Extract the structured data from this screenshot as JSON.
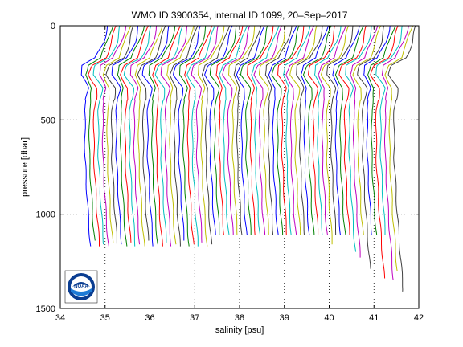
{
  "chart_data": {
    "type": "line",
    "title": "WMO ID 3900354, internal ID 1099, 20–Sep–2017",
    "xlabel": "salinity [psu]",
    "ylabel": "pressure [dbar]",
    "xlim": [
      34,
      42
    ],
    "ylim": [
      1500,
      0
    ],
    "y_reversed": true,
    "xticks": [
      "34",
      "35",
      "36",
      "37",
      "38",
      "39",
      "40",
      "41",
      "42"
    ],
    "yticks": [
      "0",
      "500",
      "1000",
      "1500"
    ],
    "grid": "dotted",
    "logo": "NOAA",
    "profile_offsets": [
      0,
      0.1,
      0.2,
      0.3,
      0.4,
      0.5,
      0.6,
      0.7,
      0.8,
      0.9,
      1.0,
      1.1,
      1.2,
      1.3,
      1.4,
      1.5,
      1.6,
      1.7,
      1.8,
      1.9,
      2.0,
      2.1,
      2.2,
      2.3,
      2.4,
      2.5,
      2.6,
      2.7,
      2.8,
      2.9,
      3.0,
      3.1,
      3.2,
      3.3,
      3.4,
      3.5,
      3.6,
      3.7,
      3.8,
      3.9,
      4.0,
      4.1,
      4.2,
      4.3,
      4.4,
      4.5,
      4.6,
      4.7,
      4.8,
      4.9,
      5.0,
      5.1,
      5.2,
      5.3,
      5.4,
      5.5,
      5.6,
      5.7,
      5.8,
      5.9,
      6.0,
      6.1,
      6.2,
      6.3,
      6.4,
      6.5,
      6.6,
      6.7,
      6.8,
      6.9
    ],
    "profile_depths": [
      1170,
      1140,
      1170,
      1160,
      1170,
      1150,
      1170,
      1160,
      1170,
      1150,
      1170,
      1160,
      1170,
      1140,
      1170,
      1160,
      1170,
      1150,
      1170,
      1160,
      1170,
      1140,
      1170,
      1160,
      1170,
      1150,
      1170,
      1160,
      1110,
      1110,
      1110,
      1110,
      1110,
      1110,
      1110,
      1110,
      1110,
      1110,
      1110,
      1110,
      1110,
      1110,
      1110,
      1110,
      1110,
      1110,
      1110,
      1110,
      1110,
      1110,
      1110,
      1110,
      1110,
      1110,
      1160,
      1110,
      1110,
      1110,
      1110,
      1200,
      1230,
      1110,
      1290,
      1110,
      1110,
      1340,
      1110,
      1350,
      1300,
      1410
    ],
    "base_profile": {
      "p": [
        0,
        90,
        170,
        210,
        260,
        330,
        450,
        700,
        1000,
        1400
      ],
      "s": [
        35.05,
        34.95,
        34.8,
        34.5,
        34.45,
        34.62,
        34.55,
        34.55,
        34.62,
        34.75
      ]
    },
    "colors": [
      "#0000ff",
      "#008000",
      "#ff0000",
      "#00bfbf",
      "#bf00bf",
      "#bfbf00",
      "#404040"
    ]
  }
}
